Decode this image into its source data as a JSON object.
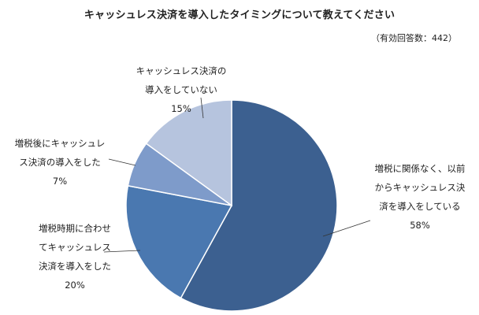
{
  "chart_data": {
    "type": "pie",
    "title": "キャッシュレス決済を導入したタイミングについて教えてください",
    "subtitle": "（有効回答数：442）",
    "colors": {
      "slice1": "#3C6090",
      "slice2": "#4A78B0",
      "slice3": "#7E9BCA",
      "slice4": "#B6C4DE"
    },
    "slices": [
      {
        "label_lines": [
          "増税に関係なく、以前",
          "からキャッシュレス決",
          "済を導入をしている"
        ],
        "value": 58,
        "value_label": "58%"
      },
      {
        "label_lines": [
          "増税時期に合わせ",
          "てキャッシュレス",
          "決済を導入をした"
        ],
        "value": 20,
        "value_label": "20%"
      },
      {
        "label_lines": [
          "増税後にキャッシュレ",
          "ス決済の導入をした"
        ],
        "value": 7,
        "value_label": "7%"
      },
      {
        "label_lines": [
          "キャッシュレス決済の",
          "導入をしていない"
        ],
        "value": 15,
        "value_label": "15%"
      }
    ]
  }
}
